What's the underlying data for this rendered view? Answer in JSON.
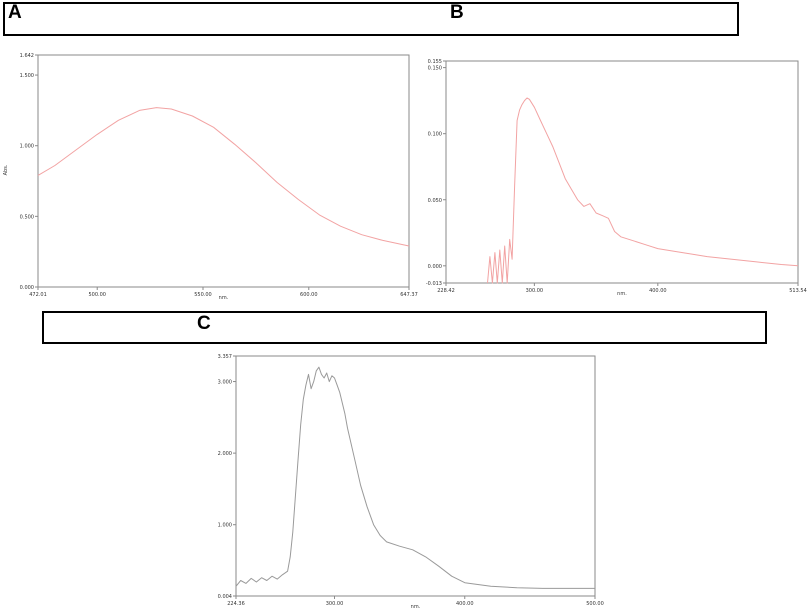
{
  "panels": {
    "a": {
      "letter": "A"
    },
    "b": {
      "letter": "B"
    },
    "c": {
      "letter": "C"
    }
  },
  "chart_data": [
    {
      "id": "A",
      "type": "line",
      "color": "#f2a3a3",
      "xlabel": "nm.",
      "ylabel": "Abs.",
      "xlim": [
        472.01,
        647.37
      ],
      "ylim": [
        0.0,
        1.642
      ],
      "x_ticks": [
        "472.01",
        "500.00",
        "550.00",
        "600.00",
        "647.37"
      ],
      "x_tick_values": [
        472.01,
        500.0,
        550.0,
        600.0,
        647.37
      ],
      "y_ticks": [
        "0.000",
        "0.500",
        "1.000",
        "1.500",
        "1.642"
      ],
      "y_tick_values": [
        0.0,
        0.5,
        1.0,
        1.5,
        1.642
      ],
      "x": [
        472.01,
        480,
        490,
        500,
        510,
        520,
        528,
        535,
        545,
        555,
        565,
        575,
        585,
        595,
        605,
        615,
        625,
        635,
        647.37
      ],
      "y": [
        0.79,
        0.86,
        0.97,
        1.08,
        1.18,
        1.25,
        1.27,
        1.26,
        1.21,
        1.13,
        1.01,
        0.88,
        0.74,
        0.62,
        0.51,
        0.43,
        0.37,
        0.33,
        0.29
      ]
    },
    {
      "id": "B",
      "type": "line",
      "color": "#f2a3a3",
      "xlabel": "nm.",
      "ylabel": "",
      "xlim": [
        228.42,
        513.54
      ],
      "ylim": [
        -0.013,
        0.155
      ],
      "x_ticks": [
        "228.42",
        "300.00",
        "400.00",
        "513.54"
      ],
      "x_tick_values": [
        228.42,
        300.0,
        400.0,
        513.54
      ],
      "y_ticks": [
        "-0.013",
        "0.000",
        "0.050",
        "0.100",
        "0.150",
        "0.155"
      ],
      "y_tick_values": [
        -0.013,
        0.0,
        0.05,
        0.1,
        0.15,
        0.155
      ],
      "x": [
        262,
        264,
        266,
        268,
        270,
        272,
        274,
        276,
        278,
        280,
        282,
        284,
        286,
        288,
        290,
        292,
        294,
        296,
        300,
        305,
        310,
        315,
        320,
        325,
        330,
        335,
        340,
        345,
        350,
        355,
        360,
        365,
        370,
        380,
        390,
        400,
        420,
        440,
        460,
        480,
        500,
        513.54
      ],
      "y": [
        -0.013,
        0.007,
        -0.013,
        0.01,
        -0.013,
        0.012,
        -0.013,
        0.015,
        -0.013,
        0.02,
        0.005,
        0.06,
        0.11,
        0.118,
        0.122,
        0.125,
        0.127,
        0.126,
        0.12,
        0.11,
        0.1,
        0.09,
        0.078,
        0.066,
        0.058,
        0.05,
        0.045,
        0.047,
        0.04,
        0.038,
        0.036,
        0.026,
        0.022,
        0.019,
        0.016,
        0.013,
        0.01,
        0.007,
        0.005,
        0.003,
        0.001,
        0.0
      ]
    },
    {
      "id": "C",
      "type": "line",
      "color": "#9a9a9a",
      "xlabel": "nm.",
      "ylabel": "",
      "xlim": [
        224.36,
        500.0
      ],
      "ylim": [
        0.004,
        3.357
      ],
      "x_ticks": [
        "224.36",
        "300.00",
        "400.00",
        "500.00"
      ],
      "x_tick_values": [
        224.36,
        300.0,
        400.0,
        500.0
      ],
      "y_ticks": [
        "0.004",
        "1.000",
        "2.000",
        "3.000",
        "3.357"
      ],
      "y_tick_values": [
        0.004,
        1.0,
        2.0,
        3.0,
        3.357
      ],
      "x": [
        224.36,
        228,
        232,
        236,
        240,
        244,
        248,
        252,
        256,
        260,
        264,
        266,
        268,
        270,
        272,
        274,
        276,
        278,
        280,
        282,
        284,
        286,
        288,
        290,
        292,
        294,
        296,
        298,
        300,
        302,
        304,
        306,
        308,
        310,
        315,
        320,
        325,
        330,
        335,
        340,
        350,
        360,
        370,
        380,
        390,
        400,
        420,
        440,
        460,
        480,
        500
      ],
      "y": [
        0.14,
        0.22,
        0.18,
        0.25,
        0.2,
        0.26,
        0.22,
        0.28,
        0.24,
        0.3,
        0.35,
        0.55,
        0.9,
        1.4,
        1.9,
        2.4,
        2.75,
        2.95,
        3.1,
        2.9,
        3.0,
        3.15,
        3.2,
        3.1,
        3.05,
        3.12,
        3.0,
        3.08,
        3.05,
        2.95,
        2.85,
        2.7,
        2.55,
        2.35,
        1.95,
        1.55,
        1.25,
        1.0,
        0.85,
        0.76,
        0.7,
        0.65,
        0.55,
        0.42,
        0.28,
        0.19,
        0.14,
        0.12,
        0.11,
        0.11,
        0.11
      ]
    }
  ]
}
